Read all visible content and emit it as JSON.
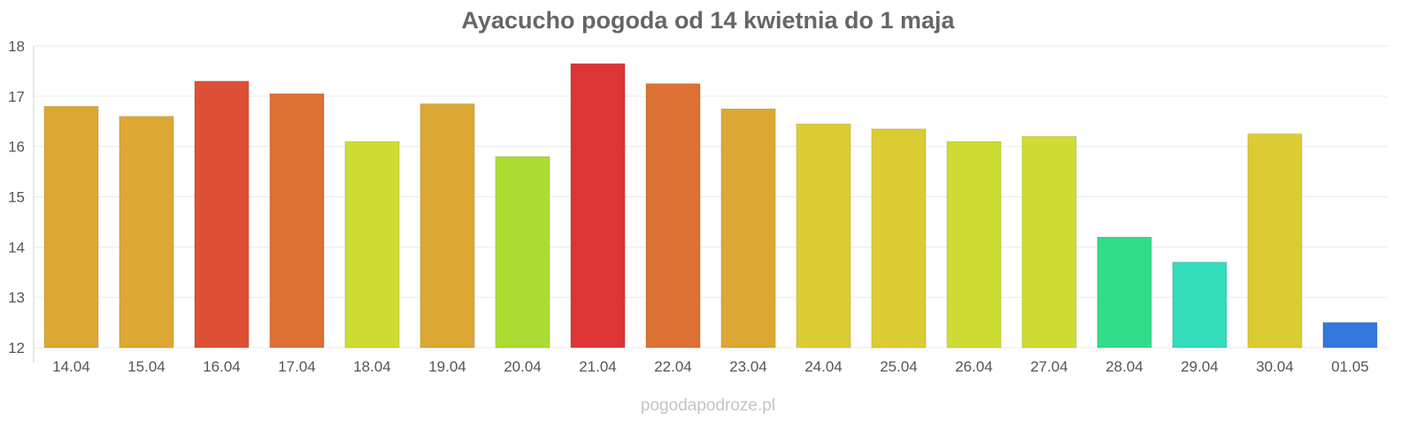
{
  "chart_data": {
    "type": "bar",
    "title": "Ayacucho pogoda od 14 kwietnia do 1 maja",
    "xlabel": "",
    "ylabel": "",
    "ylim": [
      12,
      18
    ],
    "yticks": [
      "18",
      "17",
      "16",
      "15",
      "14",
      "13",
      "12"
    ],
    "grid": true,
    "legend": "none",
    "categories": [
      "14.04",
      "15.04",
      "16.04",
      "17.04",
      "18.04",
      "19.04",
      "20.04",
      "21.04",
      "22.04",
      "23.04",
      "24.04",
      "25.04",
      "26.04",
      "27.04",
      "28.04",
      "29.04",
      "30.04",
      "01.05"
    ],
    "values": [
      16.8,
      16.6,
      17.3,
      17.05,
      16.1,
      16.85,
      15.8,
      17.65,
      17.25,
      16.75,
      16.45,
      16.35,
      16.1,
      16.2,
      14.2,
      13.7,
      16.25,
      12.5
    ],
    "colors": [
      "#dca833",
      "#dca833",
      "#dd5035",
      "#dd7035",
      "#cedc33",
      "#dca833",
      "#abdc33",
      "#dd3535",
      "#dd7035",
      "#dca833",
      "#dccc33",
      "#dccc33",
      "#cedc33",
      "#cedc33",
      "#33dc88",
      "#33dcbb",
      "#dccc33",
      "#3377dd"
    ]
  },
  "watermark": "pogodapodroze.pl"
}
